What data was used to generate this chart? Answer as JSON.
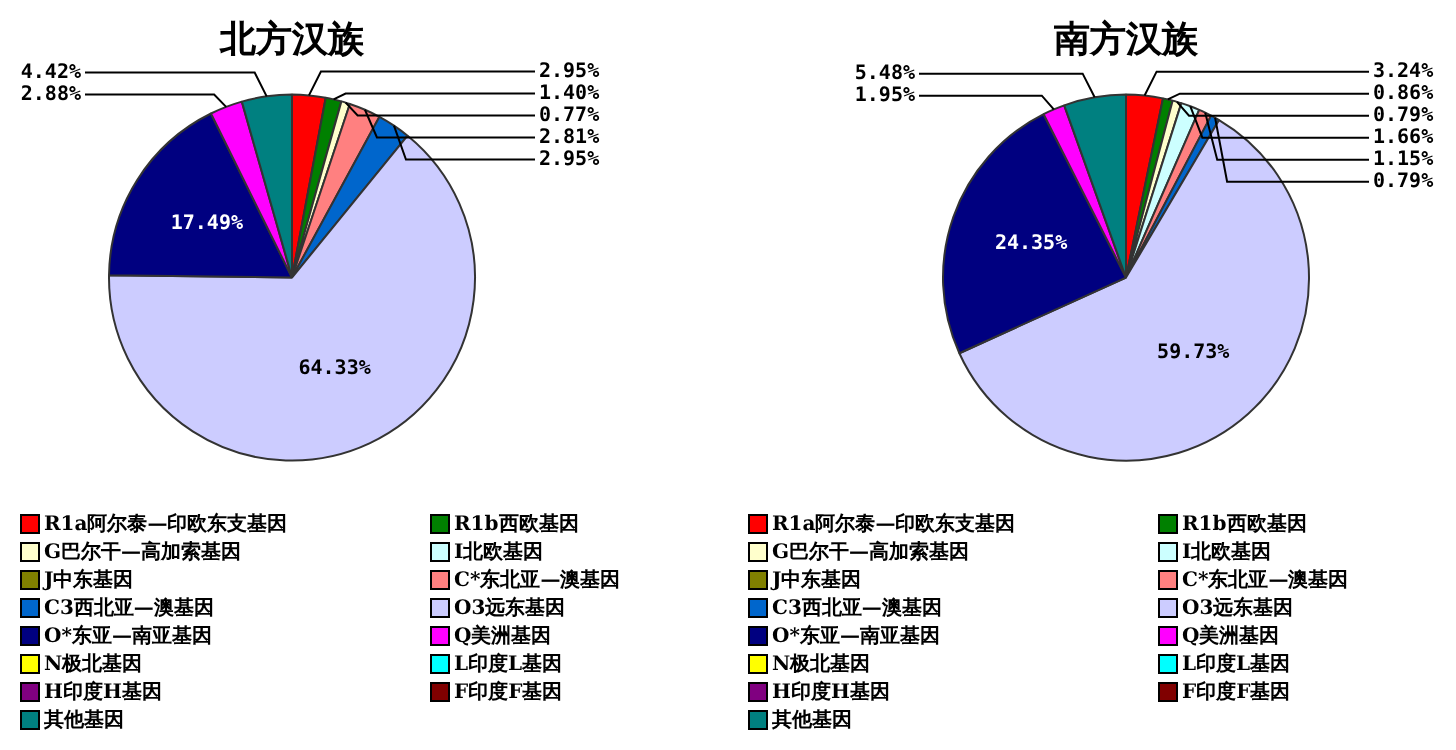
{
  "chart_data": [
    {
      "type": "pie",
      "title": "北方汉族",
      "legend": "bottom",
      "categories": [
        "R1a阿尔泰—印欧东支基因",
        "R1b西欧基因",
        "G巴尔干—高加索基因",
        "I北欧基因",
        "J中东基因",
        "C*东北亚—澳基因",
        "C3西北亚—澳基因",
        "O3远东基因",
        "O*东亚—南亚基因",
        "Q美洲基因",
        "N极北基因",
        "L印度L基因",
        "H印度H基因",
        "F印度F基因",
        "其他基因"
      ],
      "values": [
        2.95,
        1.4,
        0.77,
        0,
        0,
        2.81,
        2.95,
        64.33,
        17.49,
        2.88,
        0,
        0,
        0,
        0,
        4.42
      ],
      "value_labels": [
        "2.95%",
        "1.40%",
        "0.77%",
        null,
        null,
        "2.81%",
        "2.95%",
        "64.33%",
        "17.49%",
        "2.88%",
        null,
        null,
        null,
        null,
        "4.42%"
      ],
      "colors": [
        "#ff0000",
        "#008000",
        "#ffffcc",
        "#ccffff",
        "#808000",
        "#ff8080",
        "#0066cc",
        "#ccccff",
        "#000080",
        "#ff00ff",
        "#ffff00",
        "#00ffff",
        "#800080",
        "#800000",
        "#008080"
      ]
    },
    {
      "type": "pie",
      "title": "南方汉族",
      "legend": "bottom",
      "categories": [
        "R1a阿尔泰—印欧东支基因",
        "R1b西欧基因",
        "G巴尔干—高加索基因",
        "I北欧基因",
        "J中东基因",
        "C*东北亚—澳基因",
        "C3西北亚—澳基因",
        "O3远东基因",
        "O*东亚—南亚基因",
        "Q美洲基因",
        "N极北基因",
        "L印度L基因",
        "H印度H基因",
        "F印度F基因",
        "其他基因"
      ],
      "values": [
        3.24,
        0.86,
        0.79,
        1.66,
        0,
        1.15,
        0.79,
        59.73,
        24.35,
        1.95,
        0,
        0,
        0,
        0,
        5.48
      ],
      "value_labels": [
        "3.24%",
        "0.86%",
        "0.79%",
        "1.66%",
        null,
        "1.15%",
        "0.79%",
        "59.73%",
        "24.35%",
        "1.95%",
        null,
        null,
        null,
        null,
        "5.48%"
      ],
      "colors": [
        "#ff0000",
        "#008000",
        "#ffffcc",
        "#ccffff",
        "#808000",
        "#ff8080",
        "#0066cc",
        "#ccccff",
        "#000080",
        "#ff00ff",
        "#ffff00",
        "#00ffff",
        "#800080",
        "#800000",
        "#008080"
      ]
    }
  ]
}
